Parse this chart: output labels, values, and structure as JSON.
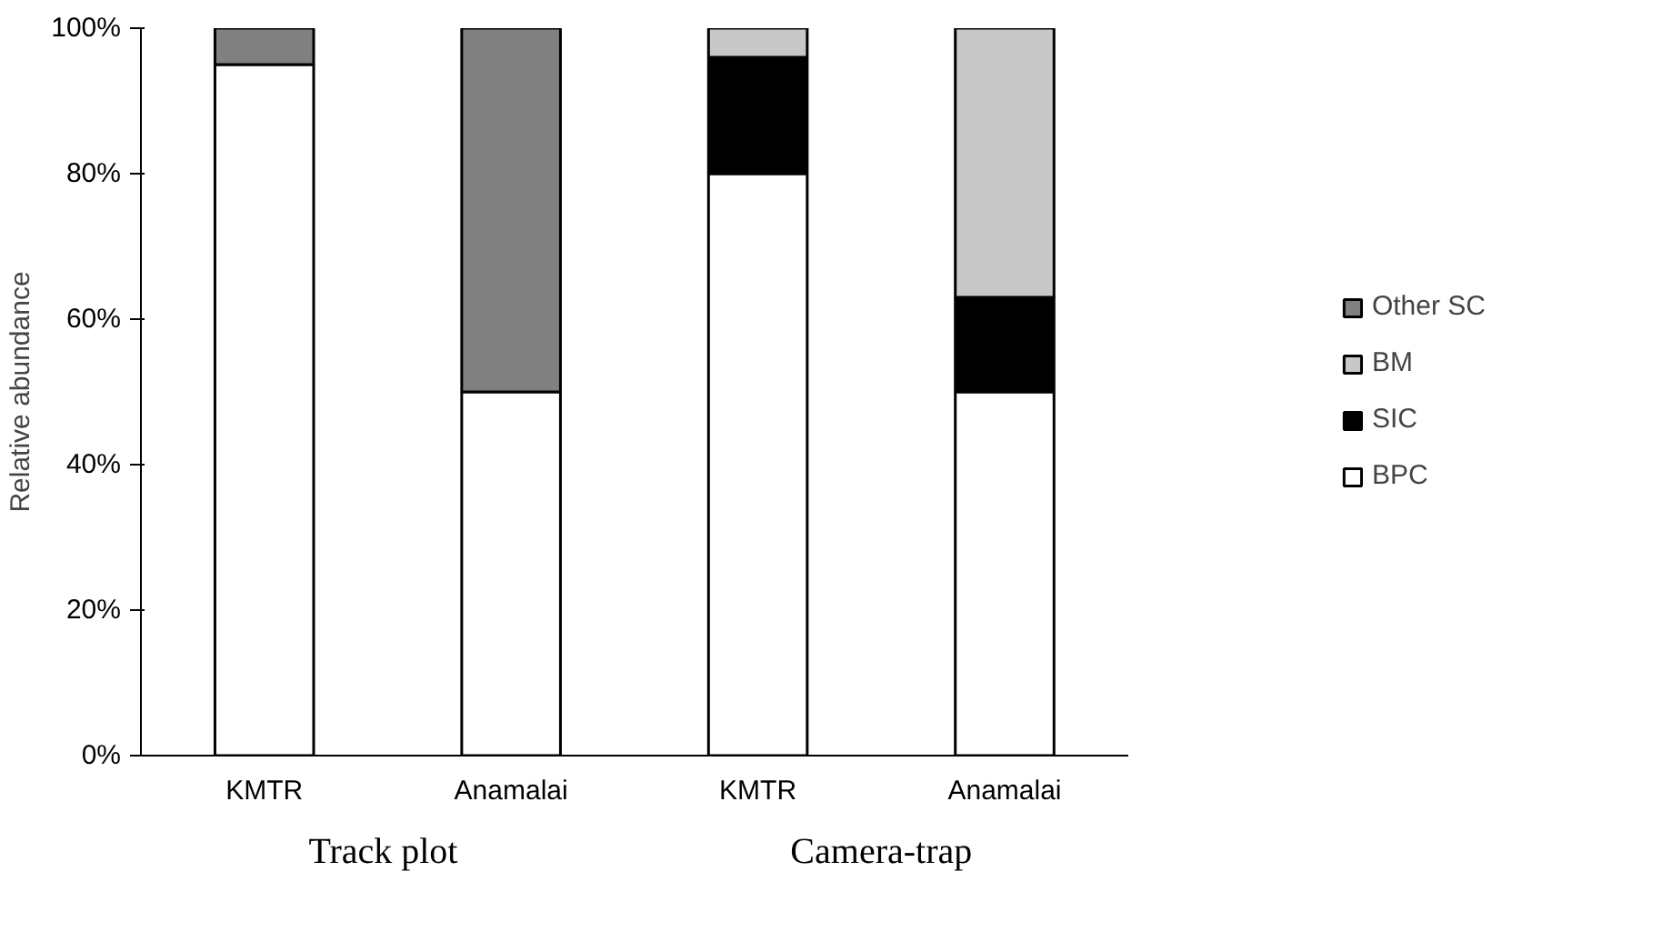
{
  "chart_data": {
    "type": "bar",
    "stacked": true,
    "ylabel": "Relative abundance",
    "categories": [
      "KMTR",
      "Anamalai",
      "KMTR",
      "Anamalai"
    ],
    "series": [
      {
        "name": "BPC",
        "color": "#ffffff",
        "values": [
          95,
          50,
          80,
          50
        ]
      },
      {
        "name": "SIC",
        "color": "#000000",
        "values": [
          0,
          0,
          16,
          13
        ]
      },
      {
        "name": "BM",
        "color": "#c8c8c8",
        "values": [
          0,
          0,
          4,
          37
        ]
      },
      {
        "name": "Other SC",
        "color": "#808080",
        "values": [
          5,
          50,
          0,
          0
        ]
      }
    ],
    "ylim": [
      0,
      100
    ],
    "yticks": [
      {
        "value": 0,
        "label": "0%"
      },
      {
        "value": 20,
        "label": "20%"
      },
      {
        "value": 40,
        "label": "40%"
      },
      {
        "value": 60,
        "label": "60%"
      },
      {
        "value": 80,
        "label": "80%"
      },
      {
        "value": 100,
        "label": "100%"
      }
    ],
    "grid": false,
    "legend": "right",
    "annotations": [
      "Track  plot",
      "Camera-trap"
    ]
  }
}
